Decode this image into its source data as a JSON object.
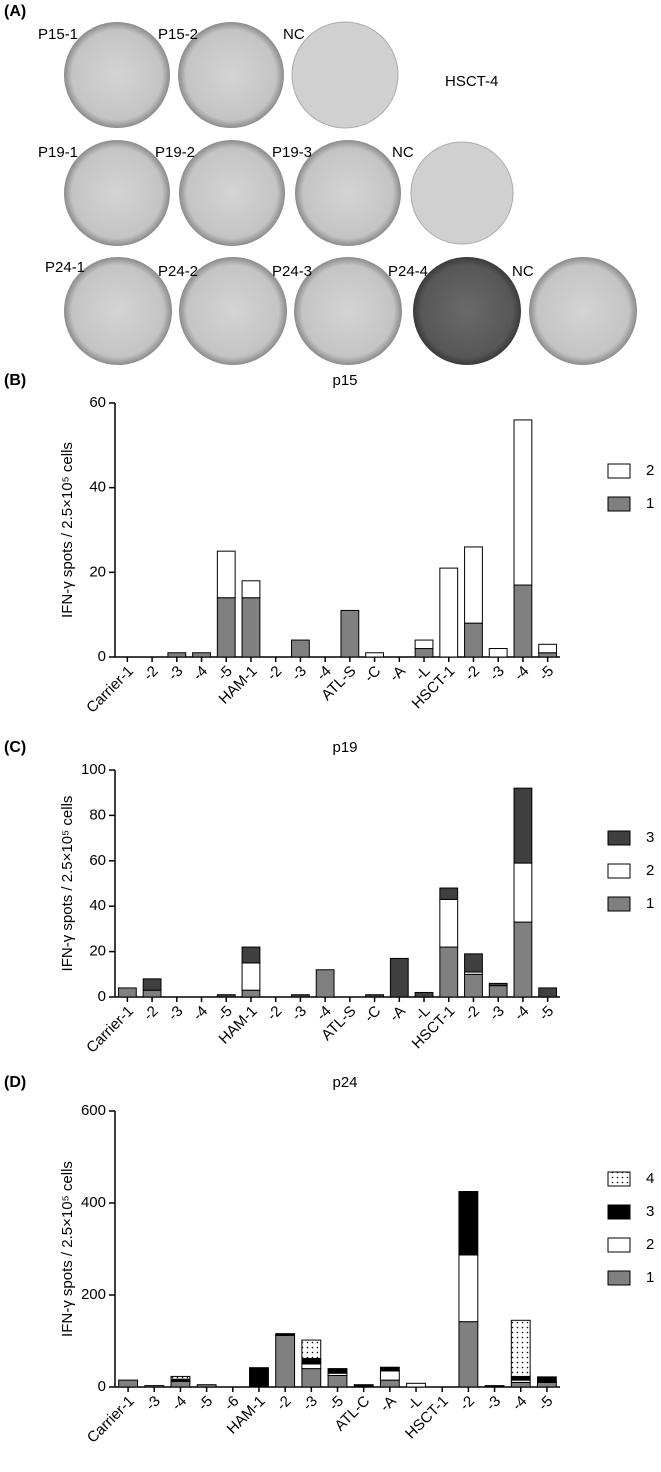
{
  "panel_a": {
    "label": "(A)",
    "rows": [
      [
        "P15-1",
        "P15-2",
        "NC"
      ],
      [
        "P19-1",
        "P19-2",
        "P19-3",
        "NC"
      ],
      [
        "P24-1",
        "P24-2",
        "P24-3",
        "P24-4",
        "NC"
      ]
    ],
    "note": "HSCT-4"
  },
  "chart_data": [
    {
      "type": "bar",
      "stacked": true,
      "panel": "(B)",
      "title": "p15",
      "y_label": "IFN-γ spots / 2.5×10⁵ cells",
      "categories": [
        "Carrier-1",
        "-2",
        "-3",
        "-4",
        "-5",
        "HAM-1",
        "-2",
        "-3",
        "-4",
        "ATL-S",
        "-C",
        "-A",
        "-L",
        "HSCT-1",
        "-2",
        "-3",
        "-4",
        "-5"
      ],
      "series": [
        {
          "name": "1",
          "color": "#808080",
          "values": [
            0,
            0,
            1,
            1,
            14,
            14,
            0,
            4,
            0,
            11,
            0,
            0,
            2,
            0,
            8,
            0,
            17,
            1
          ]
        },
        {
          "name": "2",
          "color": "#ffffff",
          "values": [
            0,
            0,
            0,
            0,
            11,
            4,
            0,
            0,
            0,
            0,
            1,
            0,
            2,
            21,
            18,
            2,
            39,
            2
          ]
        }
      ],
      "ylim": [
        0,
        60
      ],
      "yticks": [
        0,
        20,
        40,
        60
      ],
      "legend": "right"
    },
    {
      "type": "bar",
      "stacked": true,
      "panel": "(C)",
      "title": "p19",
      "y_label": "IFN-γ spots / 2.5×10⁵ cells",
      "categories": [
        "Carrier-1",
        "-2",
        "-3",
        "-4",
        "-5",
        "HAM-1",
        "-2",
        "-3",
        "-4",
        "ATL-S",
        "-C",
        "-A",
        "-L",
        "HSCT-1",
        "-2",
        "-3",
        "-4",
        "-5"
      ],
      "series": [
        {
          "name": "1",
          "color": "#808080",
          "values": [
            4,
            3,
            0,
            0,
            0,
            3,
            0,
            0,
            12,
            0,
            0,
            0,
            0,
            22,
            10,
            5,
            33,
            0
          ]
        },
        {
          "name": "2",
          "color": "#ffffff",
          "values": [
            0,
            0,
            0,
            0,
            0,
            12,
            0,
            0,
            0,
            0,
            0,
            0,
            0,
            21,
            1,
            0,
            26,
            0
          ]
        },
        {
          "name": "3",
          "color": "#404040",
          "values": [
            0,
            5,
            0,
            0,
            1,
            7,
            0,
            1,
            0,
            0,
            1,
            17,
            2,
            5,
            8,
            1,
            33,
            4
          ]
        }
      ],
      "ylim": [
        0,
        100
      ],
      "yticks": [
        0,
        20,
        40,
        60,
        80,
        100
      ],
      "legend": "right"
    },
    {
      "type": "bar",
      "stacked": true,
      "panel": "(D)",
      "title": "p24",
      "y_label": "IFN-γ spots / 2.5×10⁵ cells",
      "categories": [
        "Carrier-1",
        "-3",
        "-4",
        "-5",
        "-6",
        "HAM-1",
        "-2",
        "-3",
        "-5",
        "ATL-C",
        "-A",
        "-L",
        "HSCT-1",
        "-2",
        "-3",
        "-4",
        "-5"
      ],
      "series": [
        {
          "name": "1",
          "color": "#808080",
          "values": [
            15,
            3,
            12,
            5,
            0,
            0,
            112,
            40,
            25,
            0,
            15,
            0,
            0,
            142,
            0,
            10,
            10
          ]
        },
        {
          "name": "2",
          "color": "#ffffff",
          "values": [
            0,
            0,
            0,
            0,
            0,
            0,
            0,
            10,
            5,
            0,
            20,
            0,
            0,
            145,
            0,
            5,
            0
          ]
        },
        {
          "name": "3",
          "color": "#000000",
          "values": [
            0,
            0,
            5,
            0,
            0,
            42,
            4,
            12,
            10,
            5,
            8,
            0,
            0,
            138,
            3,
            8,
            12
          ]
        },
        {
          "name": "4",
          "color": "#ffffff",
          "pattern": "dots",
          "values": [
            0,
            0,
            6,
            0,
            0,
            0,
            0,
            40,
            0,
            0,
            0,
            8,
            0,
            0,
            0,
            122,
            0
          ]
        }
      ],
      "ylim": [
        0,
        600
      ],
      "yticks": [
        0,
        200,
        400,
        600
      ],
      "legend": "right"
    }
  ]
}
